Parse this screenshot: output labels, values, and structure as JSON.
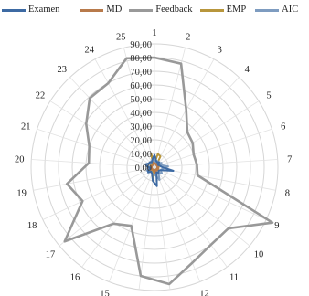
{
  "chart_data": {
    "type": "radar",
    "categories": [
      "1",
      "2",
      "3",
      "4",
      "5",
      "6",
      "7",
      "8",
      "9",
      "10",
      "11",
      "12",
      "13",
      "14",
      "15",
      "16",
      "17",
      "18",
      "19",
      "20",
      "21",
      "22",
      "23",
      "24",
      "25"
    ],
    "radial_ticks": [
      "0,00",
      "10,00",
      "20,00",
      "30,00",
      "40,00",
      "50,00",
      "60,00",
      "70,00",
      "80,00",
      "90,00"
    ],
    "rlim": [
      0,
      90
    ],
    "grid": true,
    "legend_position": "top",
    "series": [
      {
        "name": "Examen",
        "color": "#3d6aa3",
        "values": [
          9,
          5,
          4,
          5,
          3,
          4,
          5,
          14,
          5,
          4,
          5,
          4,
          14,
          10,
          5,
          4,
          6,
          5,
          3,
          5,
          7,
          5,
          5,
          4,
          6
        ]
      },
      {
        "name": "MD",
        "color": "#b87a4b",
        "values": [
          4,
          3,
          2,
          3,
          2,
          3,
          2,
          3,
          3,
          2,
          3,
          2,
          4,
          3,
          2,
          2,
          3,
          2,
          2,
          3,
          2,
          2,
          2,
          2,
          3
        ]
      },
      {
        "name": "Feedback",
        "color": "#999999",
        "values": [
          80,
          78,
          48,
          35,
          33,
          30,
          31,
          32,
          95,
          70,
          70,
          75,
          86,
          80,
          46,
          51,
          85,
          58,
          65,
          48,
          50,
          59,
          69,
          70,
          82
        ]
      },
      {
        "name": "EMP",
        "color": "#b8963c",
        "values": [
          3,
          10,
          9,
          2,
          3,
          4,
          3,
          2,
          3,
          4,
          2,
          3,
          2,
          10,
          2,
          3,
          2,
          4,
          3,
          2,
          3,
          2,
          3,
          2,
          10
        ]
      },
      {
        "name": "AIC",
        "color": "#7e9cc0",
        "values": [
          5,
          4,
          5,
          4,
          6,
          5,
          10,
          6,
          5,
          7,
          5,
          10,
          6,
          5,
          5,
          4,
          5,
          6,
          5,
          4,
          5,
          5,
          4,
          5,
          5
        ]
      }
    ]
  }
}
